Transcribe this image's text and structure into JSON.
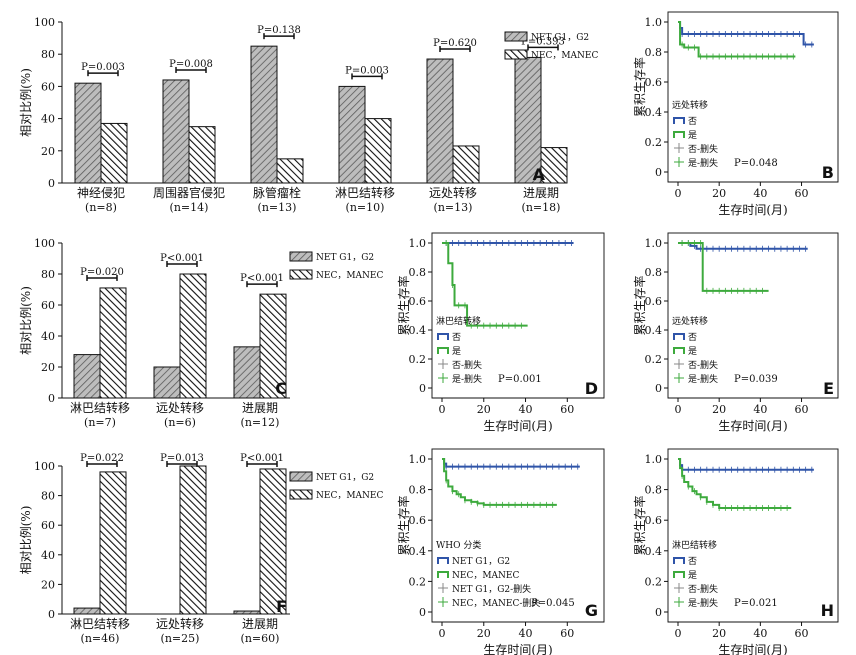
{
  "colors": {
    "blue": "#2f54a8",
    "green": "#3daa3d",
    "bar_light": "#9a9a9a",
    "bar_dark": "#555555"
  },
  "chart_data": [
    {
      "type": "bar",
      "letter": "A",
      "ylabel": "相对比例(%)",
      "ylim": [
        0,
        100
      ],
      "yticks": [
        0,
        20,
        40,
        60,
        80,
        100
      ],
      "legend": [
        "NET G1，G2",
        "NEC，MANEC"
      ],
      "categories": [
        "神经侵犯",
        "周围器官侵犯",
        "脉管瘤栓",
        "淋巴结转移",
        "远处转移",
        "进展期"
      ],
      "category_n": [
        "(n=8)",
        "(n=14)",
        "(n=13)",
        "(n=10)",
        "(n=13)",
        "(n=18)"
      ],
      "series": [
        {
          "name": "NET G1，G2",
          "values": [
            62,
            64,
            85,
            60,
            77,
            78
          ]
        },
        {
          "name": "NEC，MANEC",
          "values": [
            37,
            35,
            15,
            40,
            23,
            22
          ]
        }
      ],
      "pvalues": [
        "P=0.003",
        "P=0.008",
        "P=0.138",
        "P=0.003",
        "P=0.620",
        "P=0.393"
      ]
    },
    {
      "type": "line",
      "letter": "B",
      "ylabel": "累积生存率",
      "xlabel": "生存时间(月)",
      "xticks": [
        0,
        20,
        40,
        60
      ],
      "yticks": [
        0,
        0.2,
        0.4,
        0.6,
        0.8,
        1.0
      ],
      "xlim": [
        0,
        68
      ],
      "ylim": [
        0,
        1.0
      ],
      "legend_title": "远处转移",
      "legend": [
        "否",
        "是",
        "否-删失",
        "是-删失"
      ],
      "pvalue": "P=0.048",
      "series": [
        {
          "name": "否",
          "color": "blue",
          "x": [
            0,
            1,
            2,
            61,
            66
          ],
          "y": [
            1.0,
            0.96,
            0.92,
            0.85,
            0.85
          ]
        },
        {
          "name": "是",
          "color": "green",
          "x": [
            0,
            1,
            3,
            10,
            57
          ],
          "y": [
            1.0,
            0.85,
            0.83,
            0.77,
            0.77
          ]
        }
      ]
    },
    {
      "type": "bar",
      "letter": "C",
      "ylabel": "相对比例(%)",
      "ylim": [
        0,
        100
      ],
      "yticks": [
        0,
        20,
        40,
        60,
        80,
        100
      ],
      "legend": [
        "NET G1，G2",
        "NEC，MANEC"
      ],
      "categories": [
        "淋巴结转移",
        "远处转移",
        "进展期"
      ],
      "category_n": [
        "(n=7)",
        "(n=6)",
        "(n=12)"
      ],
      "series": [
        {
          "name": "NET G1，G2",
          "values": [
            28,
            20,
            33
          ]
        },
        {
          "name": "NEC，MANEC",
          "values": [
            71,
            80,
            67
          ]
        }
      ],
      "pvalues": [
        "P=0.020",
        "P<0.001",
        "P<0.001"
      ]
    },
    {
      "type": "line",
      "letter": "D",
      "ylabel": "累积生存率",
      "xlabel": "生存时间(月)",
      "xticks": [
        0,
        20,
        40,
        60
      ],
      "yticks": [
        0,
        0.2,
        0.4,
        0.6,
        0.8,
        1.0
      ],
      "xlim": [
        0,
        68
      ],
      "ylim": [
        0,
        1.0
      ],
      "legend_title": "淋巴结转移",
      "legend": [
        "否",
        "是",
        "否-删失",
        "是-删失"
      ],
      "pvalue": "P=0.001",
      "series": [
        {
          "name": "否",
          "color": "blue",
          "x": [
            0,
            63
          ],
          "y": [
            1.0,
            1.0
          ]
        },
        {
          "name": "是",
          "color": "green",
          "x": [
            0,
            3,
            5,
            6,
            9,
            12,
            41
          ],
          "y": [
            1.0,
            0.86,
            0.71,
            0.57,
            0.57,
            0.43,
            0.43
          ]
        }
      ]
    },
    {
      "type": "line",
      "letter": "E",
      "ylabel": "累积生存率",
      "xlabel": "生存时间(月)",
      "xticks": [
        0,
        20,
        40,
        60
      ],
      "yticks": [
        0,
        0.2,
        0.4,
        0.6,
        0.8,
        1.0
      ],
      "xlim": [
        0,
        68
      ],
      "ylim": [
        0,
        1.0
      ],
      "legend_title": "远处转移",
      "legend": [
        "否",
        "是",
        "否-删失",
        "是-删失"
      ],
      "pvalue": "P=0.039",
      "series": [
        {
          "name": "否",
          "color": "blue",
          "x": [
            0,
            6,
            9,
            63
          ],
          "y": [
            1.0,
            0.98,
            0.96,
            0.96
          ]
        },
        {
          "name": "是",
          "color": "green",
          "x": [
            0,
            11,
            12,
            44
          ],
          "y": [
            1.0,
            1.0,
            0.67,
            0.67
          ]
        }
      ]
    },
    {
      "type": "bar",
      "letter": "F",
      "ylabel": "相对比例(%)",
      "ylim": [
        0,
        100
      ],
      "yticks": [
        0,
        20,
        40,
        60,
        80,
        100
      ],
      "legend": [
        "NET G1，G2",
        "NEC，MANEC"
      ],
      "categories": [
        "淋巴结转移",
        "远处转移",
        "进展期"
      ],
      "category_n": [
        "(n=46)",
        "(n=25)",
        "(n=60)"
      ],
      "series": [
        {
          "name": "NET G1，G2",
          "values": [
            4,
            0,
            2
          ]
        },
        {
          "name": "NEC，MANEC",
          "values": [
            96,
            100,
            98
          ]
        }
      ],
      "pvalues": [
        "P=0.022",
        "P=0.013",
        "P<0.001"
      ]
    },
    {
      "type": "line",
      "letter": "G",
      "ylabel": "累积生存率",
      "xlabel": "生存时间(月)",
      "xticks": [
        0,
        20,
        40,
        60
      ],
      "yticks": [
        0,
        0.2,
        0.4,
        0.6,
        0.8,
        1.0
      ],
      "xlim": [
        0,
        68
      ],
      "ylim": [
        0,
        1.0
      ],
      "legend_title": "WHO 分类",
      "legend": [
        "NET G1，G2",
        "NEC，MANEC",
        "NET G1，G2-删失",
        "NEC，MANEC-删失"
      ],
      "pvalue": "P=0.045",
      "series": [
        {
          "name": "NET G1，G2",
          "color": "blue",
          "x": [
            0,
            1,
            2,
            66
          ],
          "y": [
            1.0,
            0.97,
            0.95,
            0.95
          ]
        },
        {
          "name": "NEC，MANEC",
          "color": "green",
          "x": [
            0,
            1,
            2,
            3,
            5,
            7,
            9,
            11,
            14,
            17,
            20,
            55
          ],
          "y": [
            1.0,
            0.92,
            0.86,
            0.82,
            0.79,
            0.77,
            0.75,
            0.73,
            0.72,
            0.71,
            0.7,
            0.7
          ]
        }
      ]
    },
    {
      "type": "line",
      "letter": "H",
      "ylabel": "累积生存率",
      "xlabel": "生存时间(月)",
      "xticks": [
        0,
        20,
        40,
        60
      ],
      "yticks": [
        0,
        0.2,
        0.4,
        0.6,
        0.8,
        1.0
      ],
      "xlim": [
        0,
        68
      ],
      "ylim": [
        0,
        1.0
      ],
      "legend_title": "淋巴结转移",
      "legend": [
        "否",
        "是",
        "否-删失",
        "是-删失"
      ],
      "pvalue": "P=0.021",
      "series": [
        {
          "name": "否",
          "color": "blue",
          "x": [
            0,
            1,
            2,
            66
          ],
          "y": [
            1.0,
            0.96,
            0.93,
            0.93
          ]
        },
        {
          "name": "是",
          "color": "green",
          "x": [
            0,
            1,
            2,
            3,
            5,
            7,
            9,
            11,
            14,
            17,
            20,
            55
          ],
          "y": [
            1.0,
            0.94,
            0.89,
            0.85,
            0.82,
            0.79,
            0.77,
            0.75,
            0.72,
            0.7,
            0.68,
            0.68
          ]
        }
      ]
    }
  ]
}
